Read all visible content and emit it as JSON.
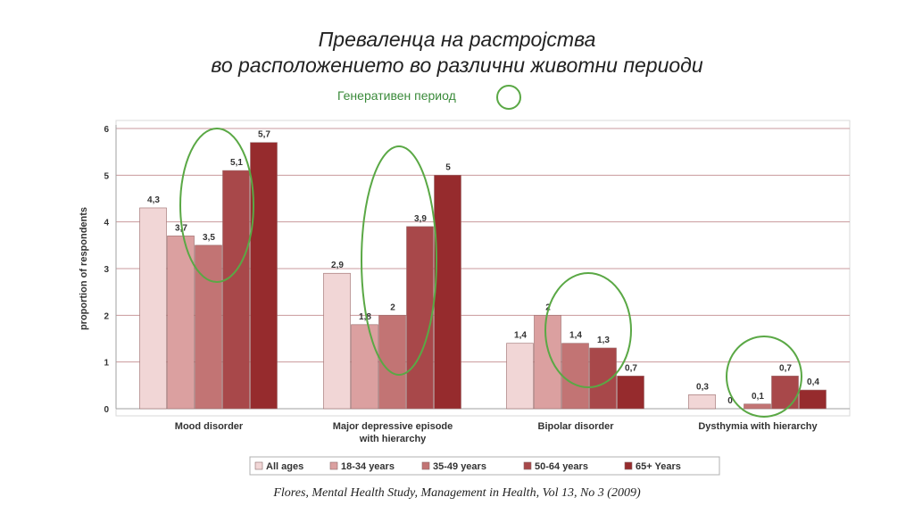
{
  "title_line1": "Преваленца на  растројства",
  "title_line2": "во расположението во различни  животни  периоди",
  "subtitle": "Генеративен период",
  "caption": "Flores, Mental Health Study,  Management in Health, Vol 13, No 3 (2009)",
  "chart_data": {
    "type": "bar",
    "ylabel": "proportion of respondents",
    "ylim": [
      0,
      6
    ],
    "yticks": [
      "0",
      "1",
      "2",
      "3",
      "4",
      "5",
      "6"
    ],
    "categories": [
      "Mood disorder",
      "Major depressive episode with hierarchy",
      "Bipolar disorder",
      "Dysthymia with hierarchy"
    ],
    "series": [
      {
        "name": "All ages",
        "color": "#f1d6d6",
        "values": [
          4.3,
          2.9,
          1.4,
          0.3
        ],
        "labels": [
          "4,3",
          "2,9",
          "1,4",
          "0,3"
        ]
      },
      {
        "name": "18-34 years",
        "color": "#dba0a0",
        "values": [
          3.7,
          1.8,
          2.0,
          0
        ],
        "labels": [
          "3,7",
          "1,8",
          "2",
          "0"
        ]
      },
      {
        "name": "35-49 years",
        "color": "#c27474",
        "values": [
          3.5,
          2.0,
          1.4,
          0.1
        ],
        "labels": [
          "3,5",
          "2",
          "1,4",
          "0,1"
        ]
      },
      {
        "name": "50-64 years",
        "color": "#a8484a",
        "values": [
          5.1,
          3.9,
          1.3,
          0.7
        ],
        "labels": [
          "5,1",
          "3,9",
          "1,3",
          "0,7"
        ]
      },
      {
        "name": "65+ Years",
        "color": "#962b2d",
        "values": [
          5.7,
          5.0,
          0.7,
          0.4
        ],
        "labels": [
          "5,7",
          "5",
          "0,7",
          "0,4"
        ]
      }
    ],
    "grid": true,
    "legend_position": "bottom",
    "annotations": "green circles highlighting the 35-49 and 50-64 years bars in each group"
  }
}
